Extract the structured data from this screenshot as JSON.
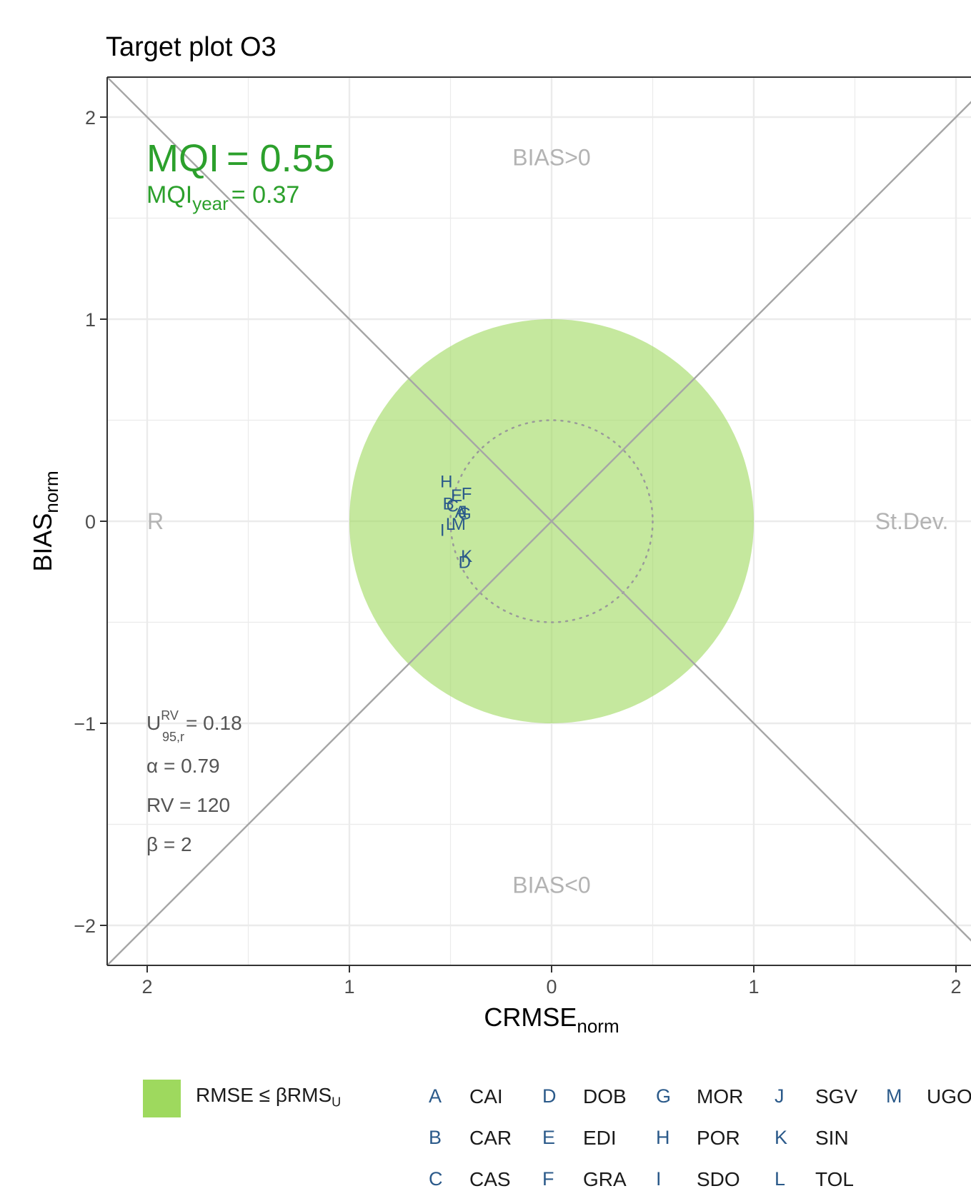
{
  "chart_data": {
    "type": "scatter",
    "title": "Target plot O3",
    "xlabel": "CRMSE",
    "xlabel_sub": "norm",
    "ylabel": "BIAS",
    "ylabel_sub": "norm",
    "xlim": [
      -2.2,
      2.2
    ],
    "ylim": [
      -2.2,
      2.2
    ],
    "x_ticks": [
      -2,
      -1,
      0,
      1,
      2
    ],
    "x_tick_labels": [
      "2",
      "1",
      "0",
      "1",
      "2"
    ],
    "y_ticks": [
      2,
      1,
      0,
      -1,
      -2
    ],
    "y_tick_labels": [
      "2",
      "1",
      "0",
      "−1",
      "−2"
    ],
    "grid": true,
    "target_circle_radius": 1,
    "inner_circle_radius": 0.5,
    "region_labels": {
      "top": "BIAS>0",
      "bottom": "BIAS<0",
      "left": "R",
      "right": "St.Dev."
    },
    "mqi": {
      "main_label": "MQI",
      "main_value": "= 0.55",
      "year_label": "MQI",
      "year_sub": "year",
      "year_value": "= 0.37"
    },
    "params": {
      "u_base": "U",
      "u_sub": "95,r",
      "u_sup": "RV",
      "u_value": "= 0.18",
      "alpha": "α = 0.79",
      "rv": "RV = 120",
      "beta": "β = 2"
    },
    "points": [
      {
        "label": "A",
        "x": -0.45,
        "y": 0.05
      },
      {
        "label": "B",
        "x": -0.51,
        "y": 0.09
      },
      {
        "label": "C",
        "x": -0.49,
        "y": 0.08
      },
      {
        "label": "D",
        "x": -0.43,
        "y": -0.2
      },
      {
        "label": "E",
        "x": -0.47,
        "y": 0.13
      },
      {
        "label": "F",
        "x": -0.42,
        "y": 0.14
      },
      {
        "label": "G",
        "x": -0.43,
        "y": 0.04
      },
      {
        "label": "H",
        "x": -0.52,
        "y": 0.2
      },
      {
        "label": "I",
        "x": -0.54,
        "y": -0.04
      },
      {
        "label": "J",
        "x": -0.44,
        "y": 0.05
      },
      {
        "label": "K",
        "x": -0.42,
        "y": -0.17
      },
      {
        "label": "L",
        "x": -0.5,
        "y": -0.01
      },
      {
        "label": "M",
        "x": -0.46,
        "y": -0.01
      }
    ],
    "colors": {
      "mqi": "#2ca02c",
      "target_fill": "#9ed95e",
      "points": "#2b5a8a",
      "region_text": "#b3b3b3",
      "diagonal": "#a6a6a6",
      "grid": "#ebebeb"
    },
    "legend": {
      "swatch_label": "RMSE ≤ βRMS",
      "swatch_label_sub": "U",
      "stations": [
        {
          "code": "A",
          "name": "CAI"
        },
        {
          "code": "B",
          "name": "CAR"
        },
        {
          "code": "C",
          "name": "CAS"
        },
        {
          "code": "D",
          "name": "DOB"
        },
        {
          "code": "E",
          "name": "EDI"
        },
        {
          "code": "F",
          "name": "GRA"
        },
        {
          "code": "G",
          "name": "MOR"
        },
        {
          "code": "H",
          "name": "POR"
        },
        {
          "code": "I",
          "name": "SDO"
        },
        {
          "code": "J",
          "name": "SGV"
        },
        {
          "code": "K",
          "name": "SIN"
        },
        {
          "code": "L",
          "name": "TOL"
        },
        {
          "code": "M",
          "name": "UGO"
        }
      ]
    }
  }
}
